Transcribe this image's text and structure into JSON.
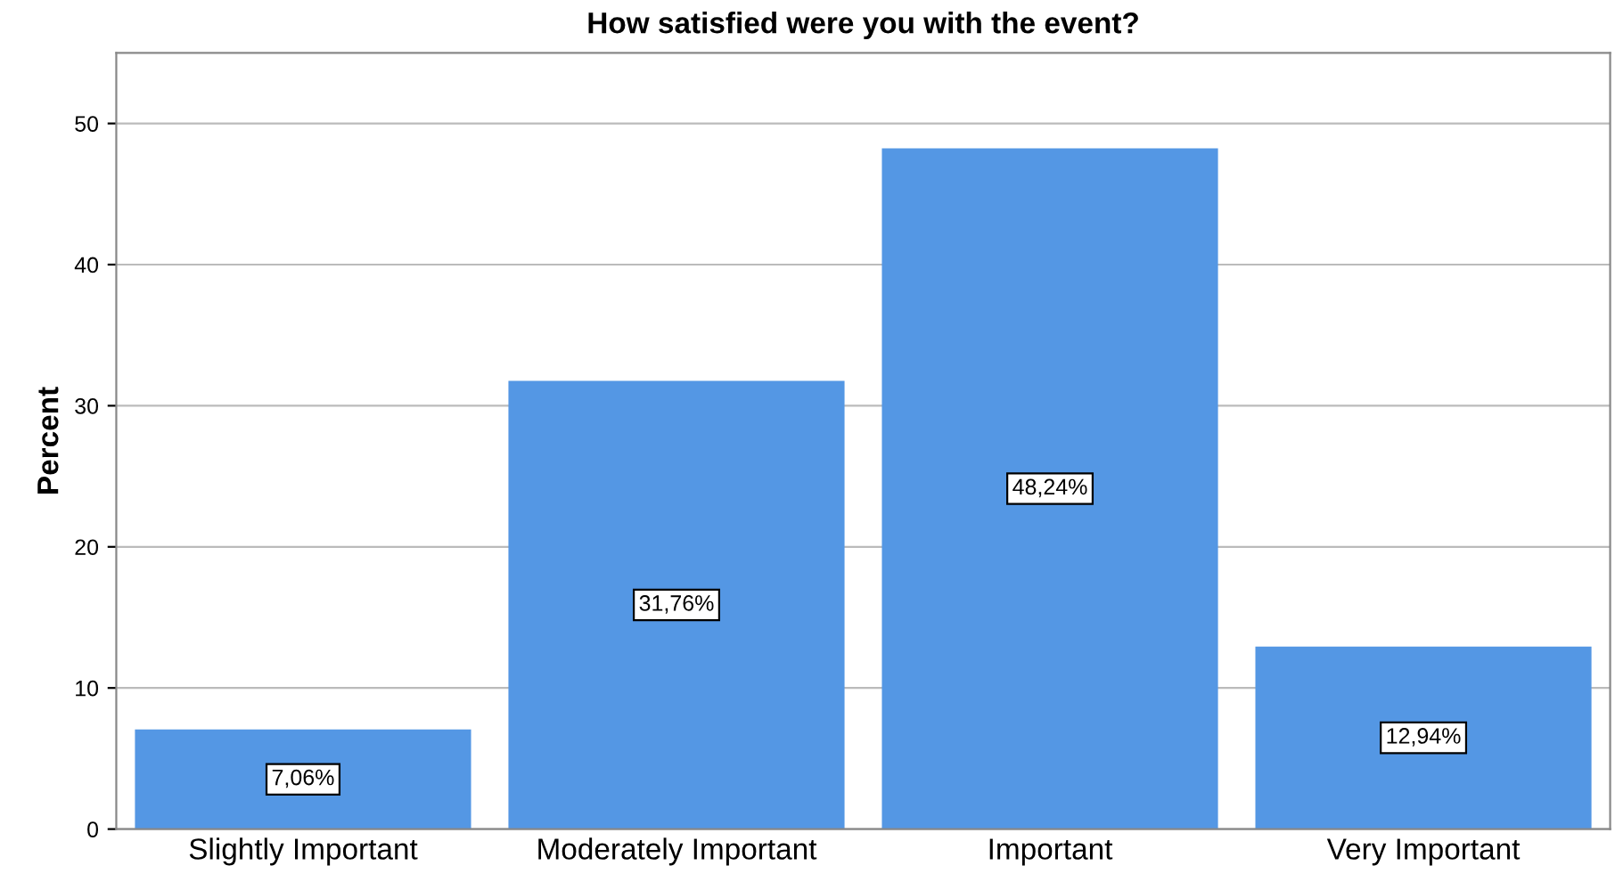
{
  "chart_data": {
    "type": "bar",
    "title": "How satisfied were you with the event?",
    "ylabel": "Percent",
    "categories": [
      "Slightly Important",
      "Moderately Important",
      "Important",
      "Very Important"
    ],
    "values": [
      7.06,
      31.76,
      48.24,
      12.94
    ],
    "value_labels": [
      "7,06%",
      "31,76%",
      "48,24%",
      "12,94%"
    ],
    "color": "#5497e4",
    "ylim": [
      0,
      55
    ],
    "yticks": [
      0,
      10,
      20,
      30,
      40,
      50
    ],
    "grid": "y"
  }
}
